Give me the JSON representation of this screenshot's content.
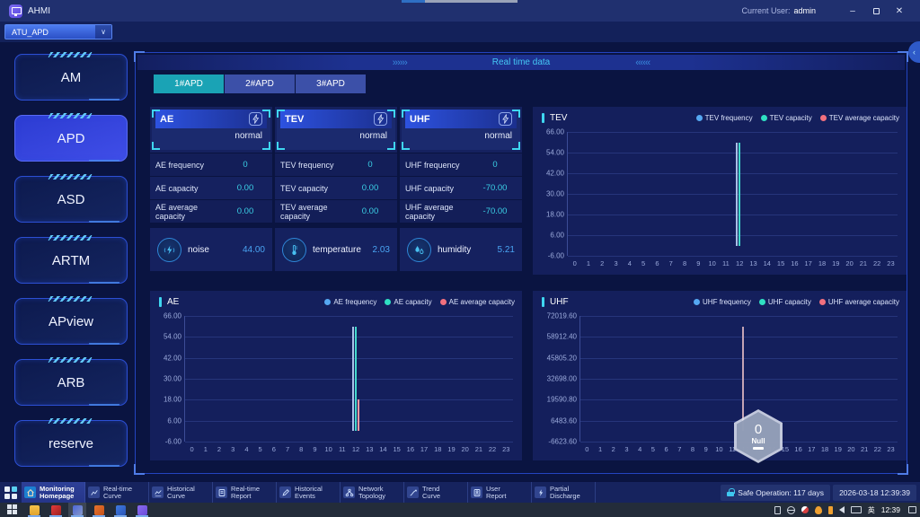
{
  "titlebar": {
    "app_name": "AHMI",
    "current_user_label": "Current User:",
    "current_user": "admin",
    "minimize": "–",
    "close": "✕"
  },
  "device_select": {
    "value": "ATU_APD",
    "chevron": "∨"
  },
  "sidebar": {
    "items": [
      {
        "label": "AM"
      },
      {
        "label": "APD",
        "active": true
      },
      {
        "label": "ASD"
      },
      {
        "label": "ARTM"
      },
      {
        "label": "APview"
      },
      {
        "label": "ARB"
      },
      {
        "label": "reserve"
      }
    ]
  },
  "main": {
    "header_title": "Real time data",
    "decor": {
      "chevrons_right": "››››››",
      "chevrons_left": "‹‹‹‹‹‹",
      "collapse": "‹"
    },
    "tabs": [
      {
        "label": "1#APD",
        "active": true
      },
      {
        "label": "2#APD"
      },
      {
        "label": "3#APD"
      }
    ],
    "cards": [
      {
        "title": "AE",
        "status": "normal",
        "rows": [
          {
            "label": "AE frequency",
            "value": "0"
          },
          {
            "label": "AE capacity",
            "value": "0.00"
          },
          {
            "label": "AE average capacity",
            "value": "0.00"
          }
        ]
      },
      {
        "title": "TEV",
        "status": "normal",
        "rows": [
          {
            "label": "TEV frequency",
            "value": "0"
          },
          {
            "label": "TEV capacity",
            "value": "0.00"
          },
          {
            "label": "TEV average capacity",
            "value": "0.00"
          }
        ]
      },
      {
        "title": "UHF",
        "status": "normal",
        "rows": [
          {
            "label": "UHF frequency",
            "value": "0"
          },
          {
            "label": "UHF capacity",
            "value": "-70.00"
          },
          {
            "label": "UHF average capacity",
            "value": "-70.00"
          }
        ]
      }
    ],
    "env_cards": [
      {
        "icon": "noise-icon",
        "label": "noise",
        "value": "44.00"
      },
      {
        "icon": "temperature-icon",
        "label": "temperature",
        "value": "2.03"
      },
      {
        "icon": "humidity-icon",
        "label": "humidity",
        "value": "5.21"
      }
    ]
  },
  "chart_data": [
    {
      "id": "tev",
      "type": "bar",
      "title": "TEV",
      "xticks": [
        "0",
        "1",
        "2",
        "3",
        "4",
        "5",
        "6",
        "7",
        "8",
        "9",
        "10",
        "11",
        "12",
        "13",
        "14",
        "15",
        "16",
        "17",
        "18",
        "19",
        "20",
        "21",
        "22",
        "23"
      ],
      "yticks": [
        "66.00",
        "54.00",
        "42.00",
        "30.00",
        "18.00",
        "6.00",
        "-6.00"
      ],
      "ylim": [
        -6,
        66
      ],
      "grid": true,
      "legend_position": "top-right",
      "series": [
        {
          "name": "TEV frequency",
          "legend_color": "#55a8f2",
          "bar_color": "#a9c0e8",
          "values": [
            0,
            0,
            0,
            0,
            0,
            0,
            0,
            0,
            0,
            0,
            0,
            0,
            60,
            0,
            0,
            0,
            0,
            0,
            0,
            0,
            0,
            0,
            0,
            0
          ]
        },
        {
          "name": "TEV capacity",
          "legend_color": "#2fe0c2",
          "bar_color": "#43d8cc",
          "values": [
            0,
            0,
            0,
            0,
            0,
            0,
            0,
            0,
            0,
            0,
            0,
            0,
            60,
            0,
            0,
            0,
            0,
            0,
            0,
            0,
            0,
            0,
            0,
            0
          ]
        },
        {
          "name": "TEV average capacity",
          "legend_color": "#f2707e",
          "bar_color": "#f29aa2",
          "values": [
            0,
            0,
            0,
            0,
            0,
            0,
            0,
            0,
            0,
            0,
            0,
            0,
            0,
            0,
            0,
            0,
            0,
            0,
            0,
            0,
            0,
            0,
            0,
            0
          ]
        }
      ]
    },
    {
      "id": "ae",
      "type": "bar",
      "title": "AE",
      "xticks": [
        "0",
        "1",
        "2",
        "3",
        "4",
        "5",
        "6",
        "7",
        "8",
        "9",
        "10",
        "11",
        "12",
        "13",
        "14",
        "15",
        "16",
        "17",
        "18",
        "19",
        "20",
        "21",
        "22",
        "23"
      ],
      "yticks": [
        "66.00",
        "54.00",
        "42.00",
        "30.00",
        "18.00",
        "6.00",
        "-6.00"
      ],
      "ylim": [
        -6,
        66
      ],
      "grid": true,
      "legend_position": "top-right",
      "series": [
        {
          "name": "AE frequency",
          "legend_color": "#55a8f2",
          "bar_color": "#a9c0e8",
          "values": [
            0,
            0,
            0,
            0,
            0,
            0,
            0,
            0,
            0,
            0,
            0,
            0,
            60,
            0,
            0,
            0,
            0,
            0,
            0,
            0,
            0,
            0,
            0,
            0
          ]
        },
        {
          "name": "AE capacity",
          "legend_color": "#2fe0c2",
          "bar_color": "#43d8cc",
          "values": [
            0,
            0,
            0,
            0,
            0,
            0,
            0,
            0,
            0,
            0,
            0,
            0,
            60,
            0,
            0,
            0,
            0,
            0,
            0,
            0,
            0,
            0,
            0,
            0
          ]
        },
        {
          "name": "AE average capacity",
          "legend_color": "#f2707e",
          "bar_color": "#f29aa2",
          "values": [
            0,
            0,
            0,
            0,
            0,
            0,
            0,
            0,
            0,
            0,
            0,
            0,
            18,
            0,
            0,
            0,
            0,
            0,
            0,
            0,
            0,
            0,
            0,
            0
          ]
        }
      ]
    },
    {
      "id": "uhf",
      "type": "bar",
      "title": "UHF",
      "xticks": [
        "0",
        "1",
        "2",
        "3",
        "4",
        "5",
        "6",
        "7",
        "8",
        "9",
        "10",
        "11",
        "12",
        "13",
        "14",
        "15",
        "16",
        "17",
        "18",
        "19",
        "20",
        "21",
        "22",
        "23"
      ],
      "yticks": [
        "72019.60",
        "58912.40",
        "45805.20",
        "32698.00",
        "19590.80",
        "6483.60",
        "-6623.60"
      ],
      "ylim": [
        -6623.6,
        72019.6
      ],
      "grid": true,
      "legend_position": "top-right",
      "series": [
        {
          "name": "UHF frequency",
          "legend_color": "#55a8f2",
          "bar_color": "#c4a4b4",
          "values": [
            0,
            0,
            0,
            0,
            0,
            0,
            0,
            0,
            0,
            0,
            0,
            0,
            65500,
            0,
            0,
            0,
            0,
            0,
            0,
            0,
            0,
            0,
            0,
            0
          ]
        },
        {
          "name": "UHF capacity",
          "legend_color": "#2fe0c2",
          "bar_color": "#43d8cc",
          "values": [
            0,
            0,
            0,
            0,
            0,
            0,
            0,
            0,
            0,
            0,
            0,
            0,
            0,
            0,
            0,
            0,
            0,
            0,
            0,
            0,
            0,
            0,
            0,
            0
          ]
        },
        {
          "name": "UHF average capacity",
          "legend_color": "#f2707e",
          "bar_color": "#f29aa2",
          "values": [
            0,
            0,
            0,
            0,
            0,
            0,
            0,
            0,
            0,
            0,
            0,
            0,
            0,
            0,
            0,
            0,
            0,
            0,
            0,
            0,
            0,
            0,
            0,
            0
          ]
        }
      ]
    }
  ],
  "overlay": {
    "value": "0",
    "label": "Null"
  },
  "bottom_nav": {
    "items": [
      {
        "line1": "Monitoring",
        "line2": "Homepage",
        "active": true
      },
      {
        "line1": "Real-time",
        "line2": "Curve"
      },
      {
        "line1": "Historical",
        "line2": "Curve"
      },
      {
        "line1": "Real-time",
        "line2": "Report"
      },
      {
        "line1": "Historical",
        "line2": "Events"
      },
      {
        "line1": "Network",
        "line2": "Topology"
      },
      {
        "line1": "Trend",
        "line2": "Curve"
      },
      {
        "line1": "User",
        "line2": "Report"
      },
      {
        "line1": "Partial",
        "line2": "Discharge"
      }
    ]
  },
  "status_bar": {
    "safe_operation": "Safe Operation: 117 days",
    "datetime": "2026-03-18 12:39:39"
  },
  "taskbar": {
    "ime": "英",
    "time": "12:39"
  }
}
